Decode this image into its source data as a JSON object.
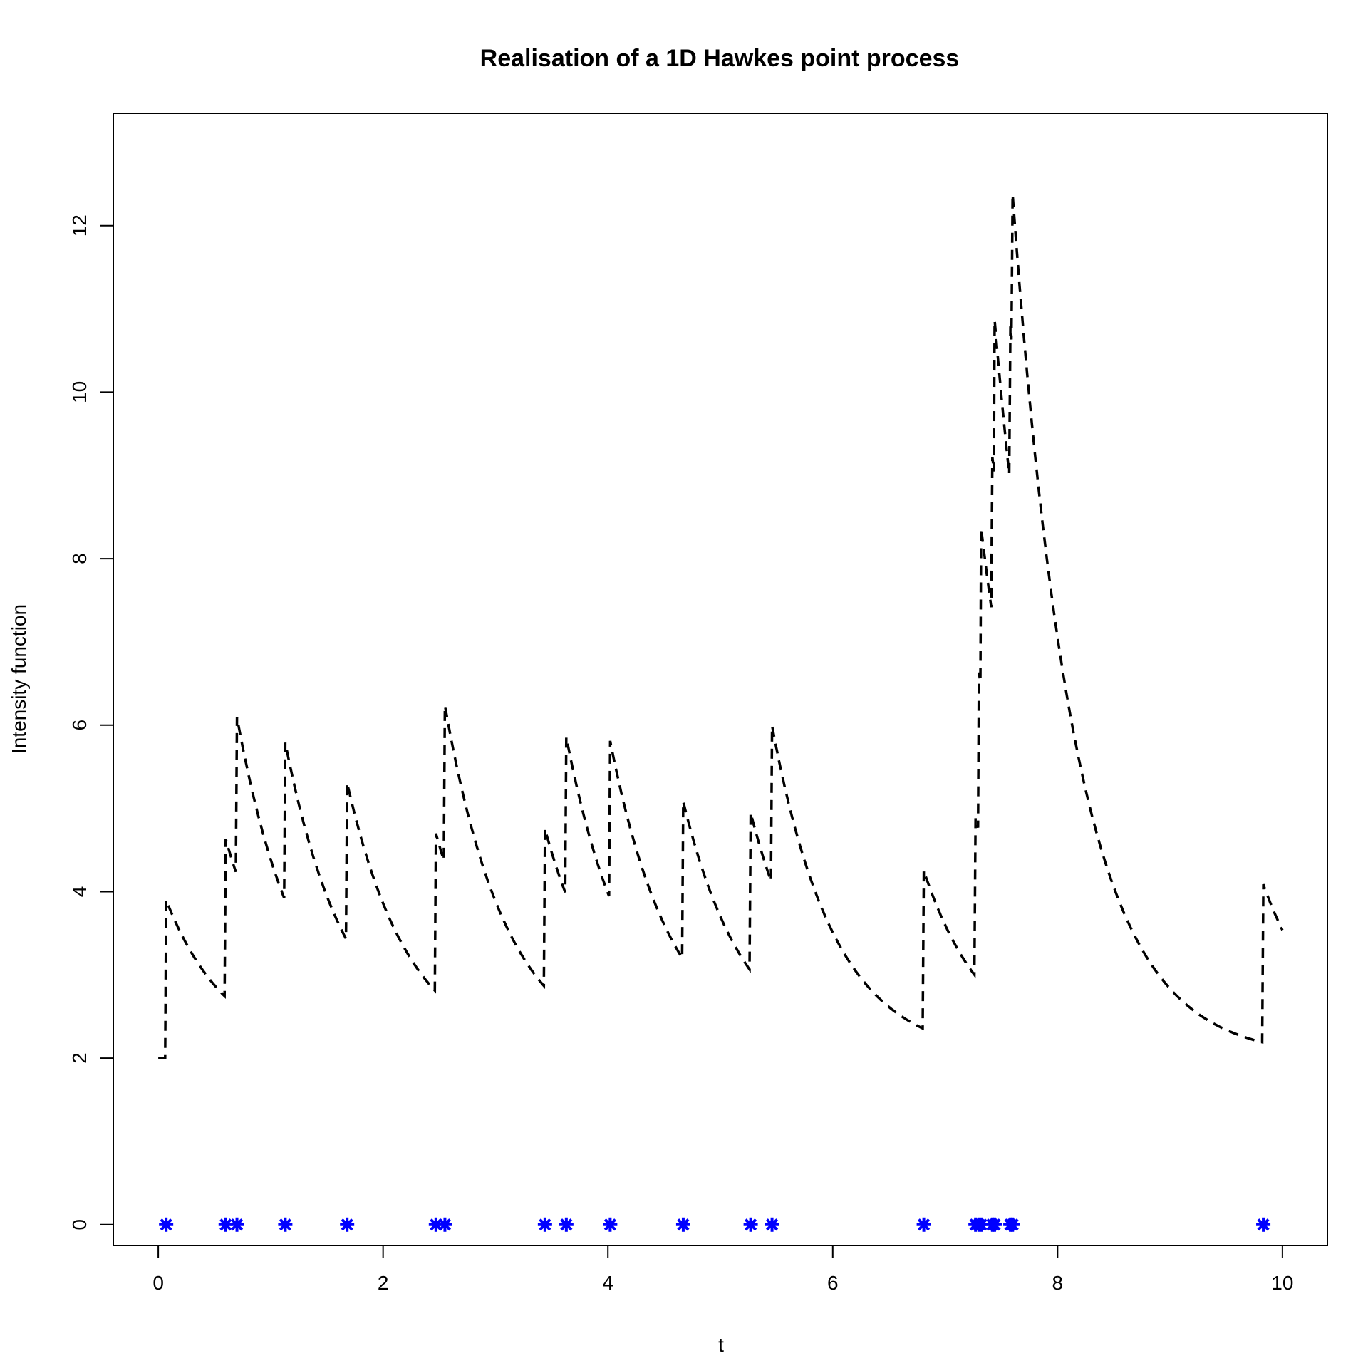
{
  "chart_data": {
    "type": "line",
    "title": "Realisation of a 1D Hawkes point process",
    "xlabel": "t",
    "ylabel": "Intensity function",
    "xlim": [
      -0.4,
      10.4
    ],
    "ylim": [
      -0.25,
      13.35
    ],
    "x_ticks": [
      "0",
      "2",
      "4",
      "6",
      "8",
      "10"
    ],
    "y_ticks": [
      "0",
      "2",
      "4",
      "6",
      "8",
      "10",
      "12"
    ],
    "grid": false,
    "legend": "none",
    "baseline": 2.0,
    "decay_rate": 1.8,
    "jump_size": 1.9,
    "t_end": 10.0,
    "events": [
      0.07,
      0.6,
      0.7,
      1.13,
      1.68,
      2.47,
      2.55,
      3.44,
      3.63,
      4.02,
      4.67,
      5.27,
      5.46,
      6.81,
      7.27,
      7.3,
      7.32,
      7.42,
      7.44,
      7.58,
      7.6,
      9.83
    ],
    "colors": {
      "intensity_line": "#000000",
      "event_marker": "#0000ff",
      "axes": "#000000"
    },
    "series": [
      {
        "name": "",
        "style": "dashed",
        "color": "#000000"
      },
      {
        "name": "",
        "style": "asterisk-markers",
        "color": "#0000ff",
        "y": 0
      }
    ]
  }
}
